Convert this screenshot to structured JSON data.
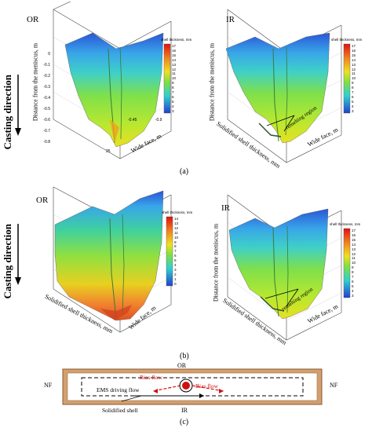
{
  "side_label": "Casting direction",
  "scale_title": "shell thickness, mm",
  "scale_ticks_a_or": [
    "17",
    "16",
    "15",
    "14",
    "13",
    "12",
    "11",
    "10",
    "9",
    "8",
    "7",
    "6",
    "5",
    "4",
    "3"
  ],
  "scale_ticks_a_ir": [
    "17",
    "16",
    "15",
    "14",
    "13",
    "12",
    "11",
    "10",
    "9",
    "8",
    "7",
    "6",
    "5",
    "4",
    "3"
  ],
  "scale_ticks_b_or": [
    "14",
    "13",
    "12",
    "11",
    "10",
    "9",
    "8",
    "7",
    "6",
    "5",
    "4",
    "3",
    "2",
    "1",
    "0"
  ],
  "scale_ticks_b_ir": [
    "17",
    "16",
    "15",
    "14",
    "13",
    "12",
    "11",
    "10",
    "9",
    "8",
    "7",
    "6",
    "5",
    "4",
    "3"
  ],
  "axis_z": "Distance from the meniscus, m",
  "axis_x": "Solidified shell thickness, mm",
  "axis_y": "Wide face, m",
  "ticks_z": [
    "0",
    "-0.1",
    "-0.2",
    "-0.3",
    "-0.4",
    "-0.5",
    "-0.6",
    "-0.7",
    "-0.8"
  ],
  "ticks_x": [
    "0",
    "5",
    "10",
    "15",
    "20",
    "25"
  ],
  "ticks_y": [
    "-0.9",
    "-0.45",
    "0"
  ],
  "panels": {
    "a_or": "OR",
    "a_ir": "IR",
    "b_or": "OR",
    "b_ir": "IR"
  },
  "remelting": "remelting region",
  "captions": {
    "a": "(a)",
    "b": "(b)",
    "c": "(c)"
  },
  "schematic": {
    "or": "OR",
    "ir": "IR",
    "nf_left": "NF",
    "nf_right": "NF",
    "ems": "EMS driving flow",
    "bias_left": "Bias flow",
    "bias_right": "Bias flow",
    "shell": "Solidified shell"
  }
}
